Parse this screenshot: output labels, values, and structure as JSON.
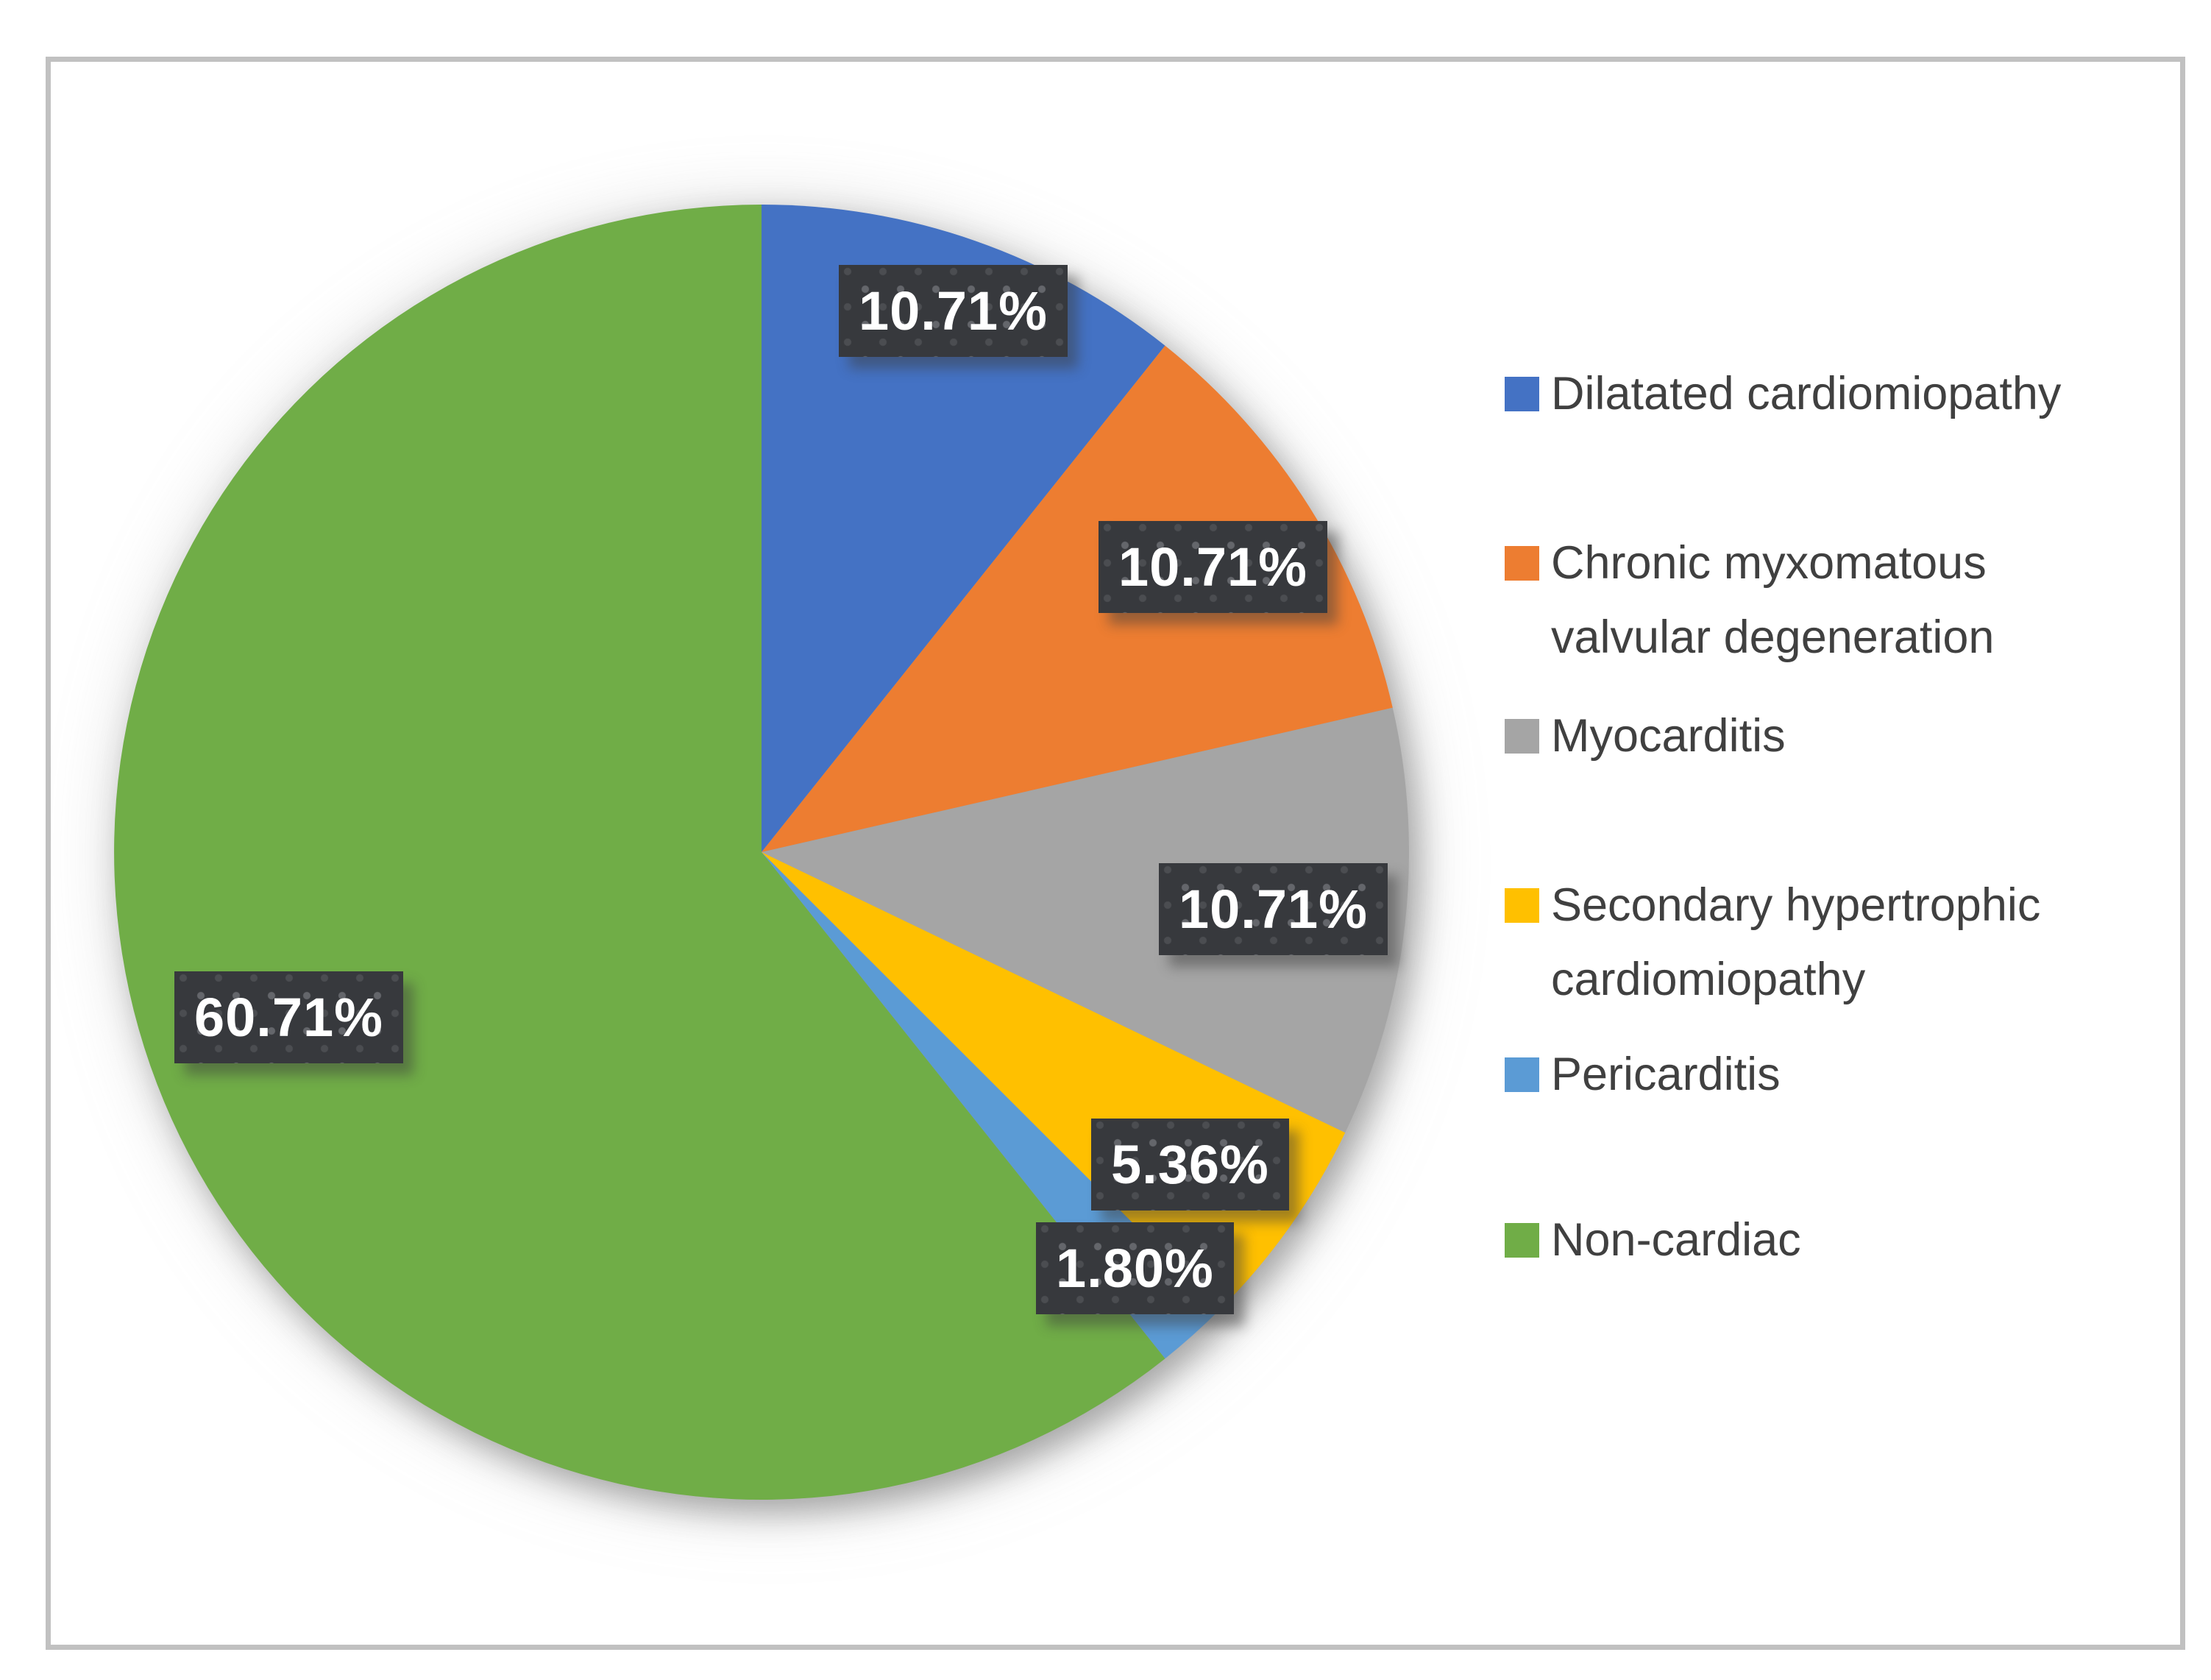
{
  "figure": {
    "background_color": "#ffffff",
    "frame_border_color": "#c1c1c1",
    "data_label_background": "#3a3c40",
    "data_label_dot_colors": [
      "#64666b",
      "#4b4d51"
    ],
    "data_label_text_color": "#ffffff",
    "legend_text_color": "#404040"
  },
  "chart_data": {
    "type": "pie",
    "title": "",
    "legend_position": "right",
    "start_angle_deg": 0,
    "direction": "clockwise",
    "categories": [
      "Dilatated cardiomiopathy",
      "Chronic myxomatous valvular degeneration",
      "Myocarditis",
      "Secondary hypertrophic cardiomiopathy",
      "Pericarditis",
      "Non-cardiac"
    ],
    "slices": [
      {
        "label": "Dilatated cardiomiopathy",
        "value": 10.71,
        "display": "10.71%",
        "color": "#4472C4"
      },
      {
        "label": "Chronic myxomatous valvular degeneration",
        "value": 10.71,
        "display": "10.71%",
        "color": "#ED7D31"
      },
      {
        "label": "Myocarditis",
        "value": 10.71,
        "display": "10.71%",
        "color": "#A5A5A5"
      },
      {
        "label": "Secondary hypertrophic cardiomiopathy",
        "value": 5.36,
        "display": "5.36%",
        "color": "#FFC000"
      },
      {
        "label": "Pericarditis",
        "value": 1.8,
        "display": "1.80%",
        "color": "#5B9BD5"
      },
      {
        "label": "Non-cardiac",
        "value": 60.71,
        "display": "60.71%",
        "color": "#70AD47"
      }
    ]
  }
}
